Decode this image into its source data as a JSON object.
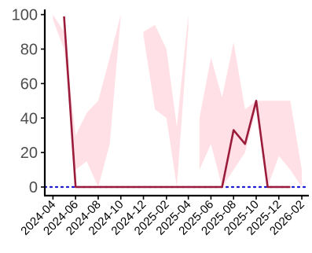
{
  "chart_data": {
    "type": "line",
    "title": "",
    "xlabel": "",
    "ylabel": "",
    "ylim": [
      -5,
      103
    ],
    "xlim": [
      "2024-03-10",
      "2026-02-20"
    ],
    "yticks": [
      0,
      20,
      40,
      60,
      80,
      100
    ],
    "ytick_labels": [
      "0",
      "20",
      "40",
      "60",
      "80",
      "100"
    ],
    "xticks": [
      "2024-04-01",
      "2024-06-01",
      "2024-08-01",
      "2024-10-01",
      "2024-12-01",
      "2025-02-01",
      "2025-04-01",
      "2025-06-01",
      "2025-08-01",
      "2025-10-01",
      "2025-12-01",
      "2026-02-01"
    ],
    "xtick_labels": [
      "2024-04",
      "2024-06",
      "2024-08",
      "2024-10",
      "2024-12",
      "2025-02",
      "2025-04",
      "2025-06",
      "2025-08",
      "2025-10",
      "2025-12",
      "2026-02"
    ],
    "grid": false,
    "legend": "none",
    "reference_line": {
      "y": 0,
      "style": "dotted",
      "color": "#1a1ad6"
    },
    "colors": {
      "line": "#9b1b3a",
      "band": "#ffe0e6",
      "axis": "#000000",
      "tick_label": "#4d4d4d"
    },
    "series": [
      {
        "x": [
          "2024-05-01",
          "2024-06-01",
          "2024-07-01",
          "2024-08-01",
          "2024-09-01",
          "2025-06-01",
          "2025-07-01",
          "2025-08-01",
          "2025-09-01",
          "2025-10-01",
          "2025-11-01",
          "2025-12-01",
          "2026-01-01"
        ],
        "y": [
          99,
          0,
          0,
          0,
          0,
          0,
          0,
          33,
          25,
          50,
          0,
          0,
          0
        ]
      }
    ],
    "bands": [
      {
        "x": [
          "2024-04-01",
          "2024-05-01",
          "2024-06-01",
          "2024-07-01",
          "2024-08-01",
          "2024-09-01",
          "2024-10-01"
        ],
        "lower": [
          97,
          80,
          10,
          15,
          0,
          25,
          99
        ],
        "upper": [
          100,
          90,
          30,
          43,
          50,
          75,
          100
        ]
      },
      {
        "x": [
          "2024-12-01",
          "2025-01-01",
          "2025-02-01",
          "2025-03-01",
          "2025-04-01"
        ],
        "lower": [
          88,
          45,
          40,
          0,
          92
        ],
        "upper": [
          90,
          94,
          80,
          35,
          100
        ]
      },
      {
        "x": [
          "2025-05-01",
          "2025-06-01",
          "2025-07-01",
          "2025-08-01",
          "2025-09-01",
          "2025-10-01",
          "2025-11-01",
          "2025-12-01",
          "2026-01-01",
          "2026-02-01"
        ],
        "lower": [
          10,
          25,
          0,
          10,
          20,
          45,
          0,
          18,
          10,
          0
        ],
        "upper": [
          40,
          75,
          52,
          84,
          45,
          50,
          50,
          50,
          50,
          10
        ]
      }
    ]
  }
}
